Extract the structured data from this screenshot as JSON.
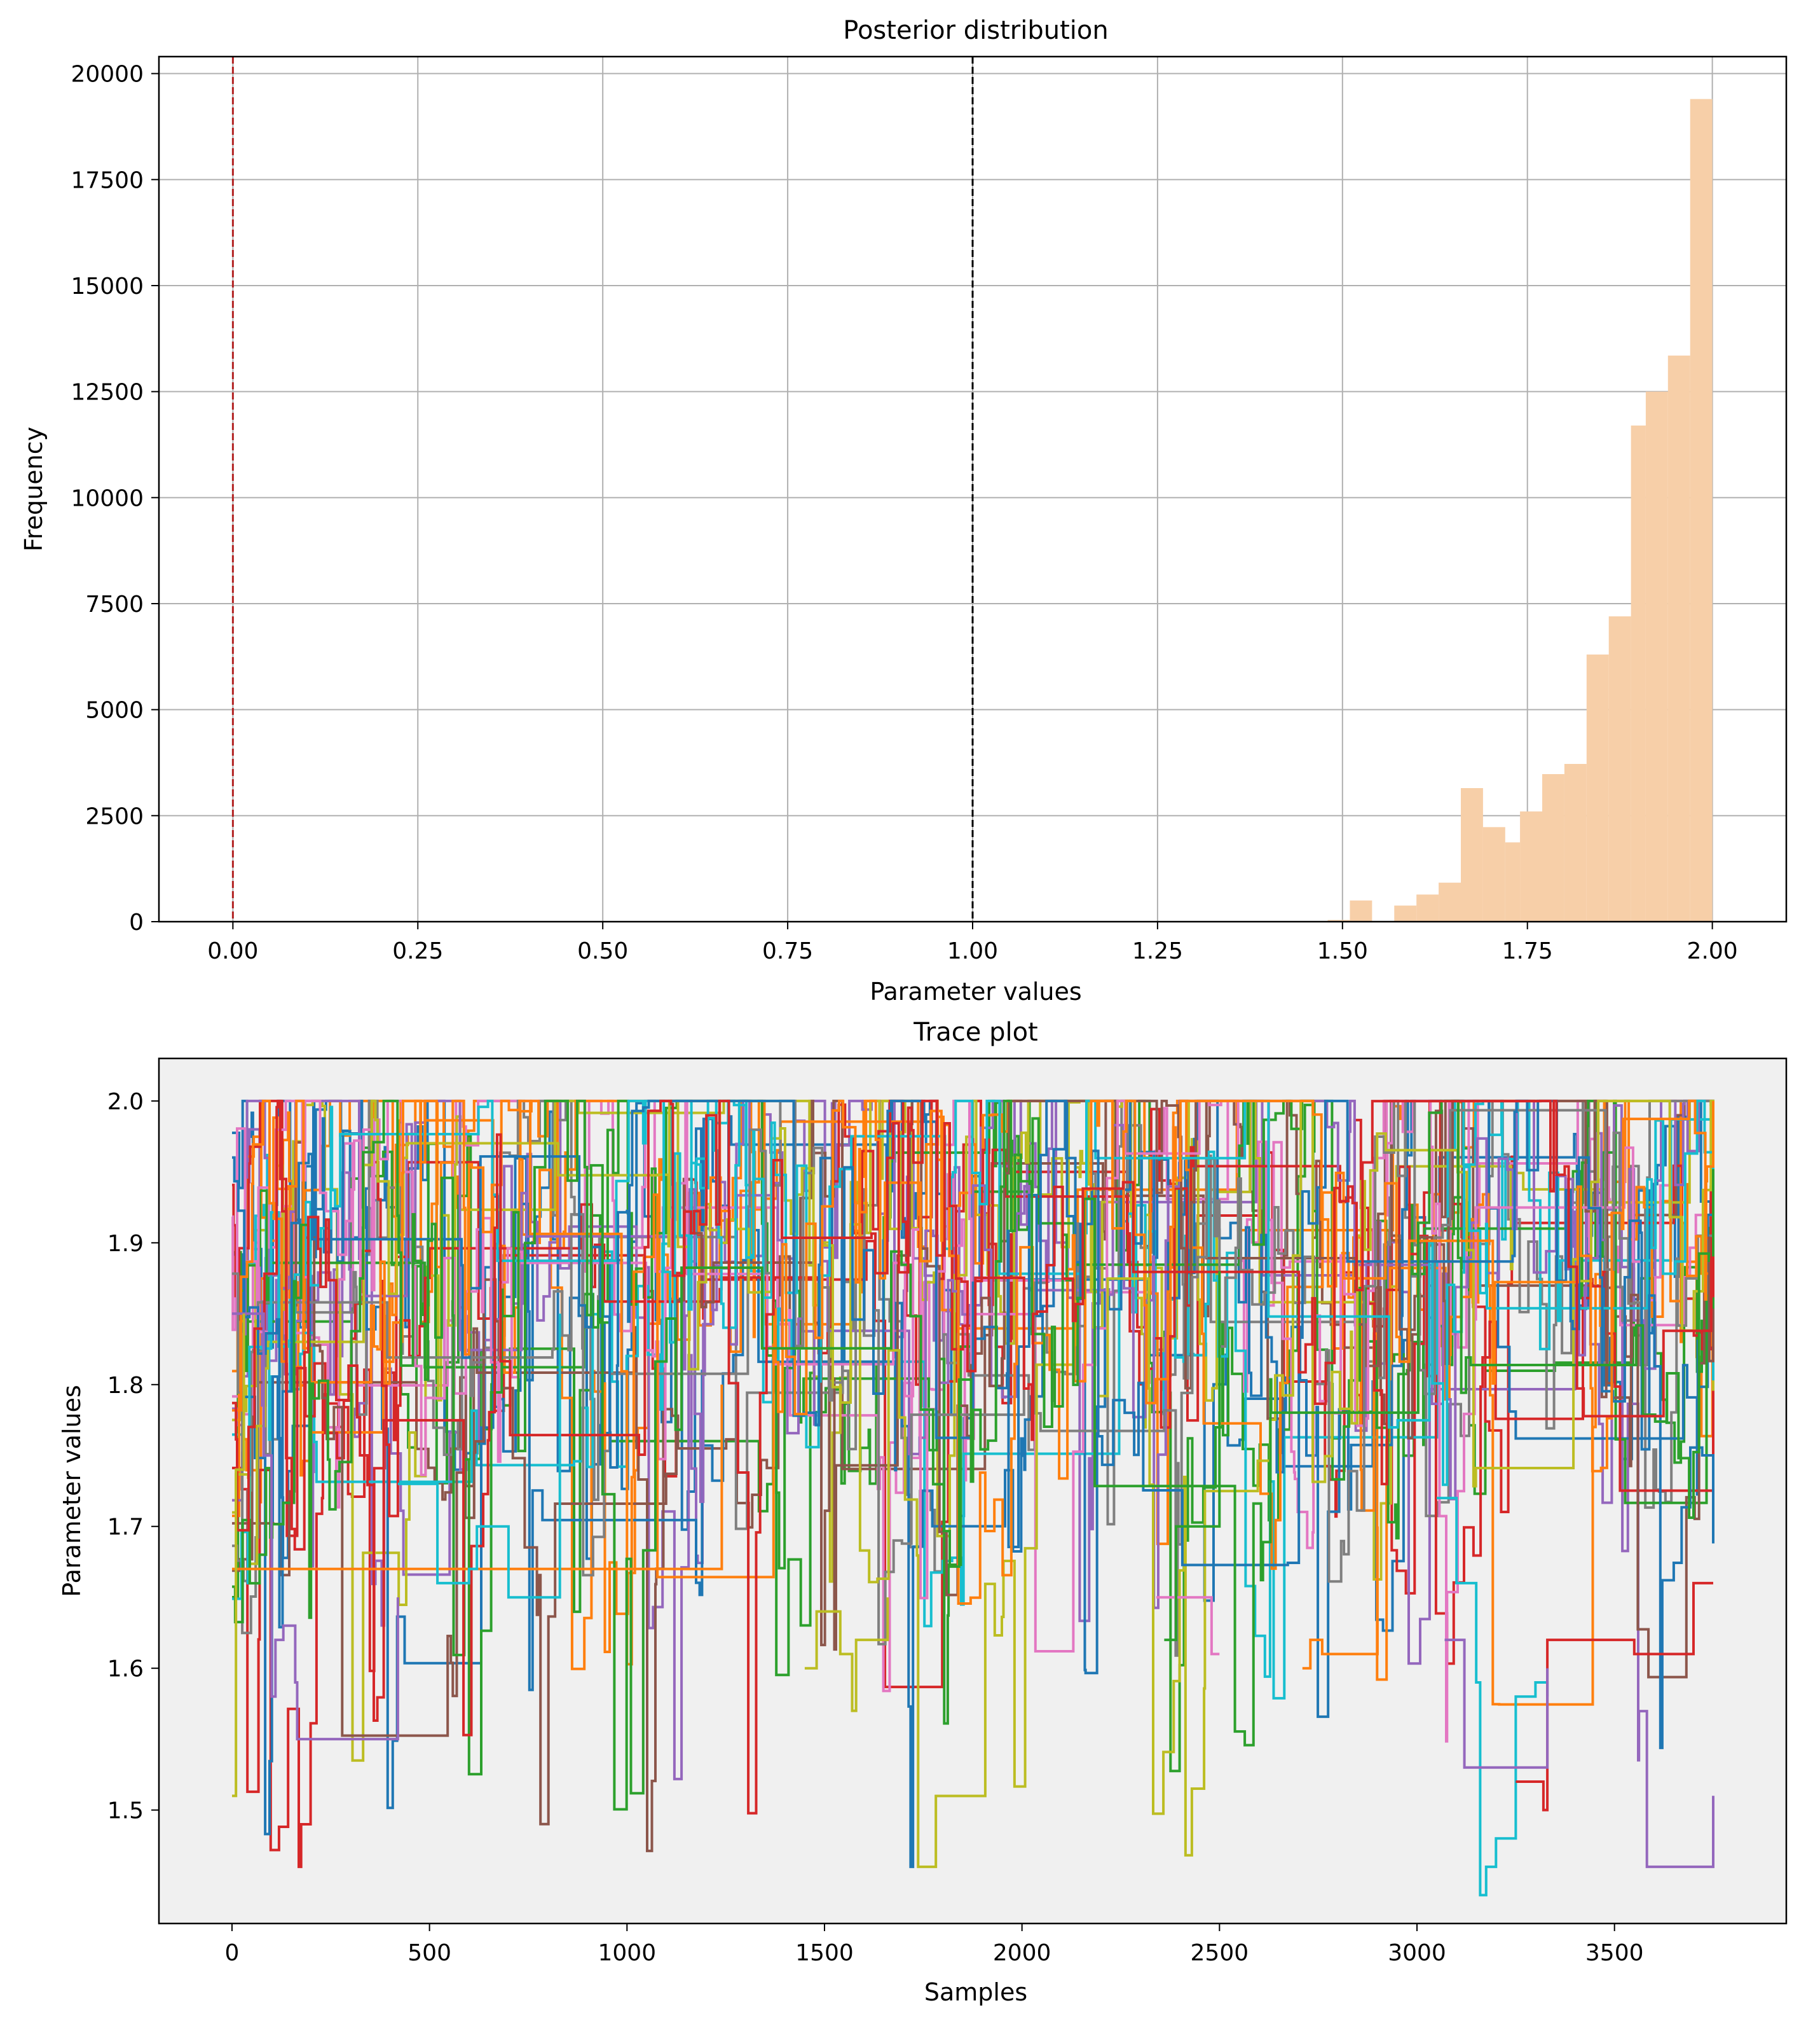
{
  "chart_data": [
    {
      "type": "bar",
      "title": "Posterior distribution",
      "xlabel": "Parameter values",
      "ylabel": "Frequency",
      "xlim": [
        -0.1,
        2.1
      ],
      "ylim": [
        0,
        20400
      ],
      "xticks": [
        "0.00",
        "0.25",
        "0.50",
        "0.75",
        "1.00",
        "1.25",
        "1.50",
        "1.75",
        "2.00"
      ],
      "yticks": [
        "0",
        "2500",
        "5000",
        "7500",
        "10000",
        "12500",
        "15000",
        "17500",
        "20000"
      ],
      "grid": true,
      "bar_color": "#f7cfa8",
      "bins": [
        {
          "x0": 1.48,
          "x1": 1.51,
          "value": 40
        },
        {
          "x0": 1.51,
          "x1": 1.54,
          "value": 500
        },
        {
          "x0": 1.57,
          "x1": 1.6,
          "value": 380
        },
        {
          "x0": 1.6,
          "x1": 1.63,
          "value": 640
        },
        {
          "x0": 1.63,
          "x1": 1.66,
          "value": 920
        },
        {
          "x0": 1.66,
          "x1": 1.69,
          "value": 3150
        },
        {
          "x0": 1.69,
          "x1": 1.72,
          "value": 2230
        },
        {
          "x0": 1.72,
          "x1": 1.74,
          "value": 1870
        },
        {
          "x0": 1.74,
          "x1": 1.77,
          "value": 2600
        },
        {
          "x0": 1.77,
          "x1": 1.8,
          "value": 3480
        },
        {
          "x0": 1.8,
          "x1": 1.83,
          "value": 3720
        },
        {
          "x0": 1.83,
          "x1": 1.86,
          "value": 6300
        },
        {
          "x0": 1.86,
          "x1": 1.89,
          "value": 7200
        },
        {
          "x0": 1.89,
          "x1": 1.91,
          "value": 11700
        },
        {
          "x0": 1.91,
          "x1": 1.94,
          "value": 12500
        },
        {
          "x0": 1.94,
          "x1": 1.97,
          "value": 13350
        },
        {
          "x0": 1.97,
          "x1": 2.0,
          "value": 19400
        }
      ],
      "vlines": [
        {
          "x": 0.0,
          "color": "#b22222",
          "style": "dashed"
        },
        {
          "x": 1.0,
          "color": "#000000",
          "style": "dashed"
        }
      ]
    },
    {
      "type": "line",
      "title": "Trace plot",
      "xlabel": "Samples",
      "ylabel": "Parameter values",
      "xlim": [
        -185,
        3935
      ],
      "ylim": [
        1.42,
        2.03
      ],
      "xticks": [
        "0",
        "500",
        "1000",
        "1500",
        "2000",
        "2500",
        "3000",
        "3500"
      ],
      "yticks": [
        "1.5",
        "1.6",
        "1.7",
        "1.8",
        "1.9",
        "2.0"
      ],
      "background": "#f0f0f0",
      "n_samples": 3750,
      "n_chains": 24,
      "series_colors": [
        "#1f77b4",
        "#ff7f0e",
        "#2ca02c",
        "#d62728",
        "#9467bd",
        "#8c564b",
        "#e377c2",
        "#7f7f7f",
        "#bcbd22",
        "#17becf"
      ],
      "highlighted_segments": [
        {
          "color": "#17becf",
          "points": [
            [
              3050,
              1.72
            ],
            [
              3100,
              1.66
            ],
            [
              3150,
              1.59
            ],
            [
              3160,
              1.44
            ],
            [
              3175,
              1.46
            ],
            [
              3200,
              1.48
            ],
            [
              3250,
              1.48
            ],
            [
              3250,
              1.58
            ],
            [
              3300,
              1.59
            ],
            [
              3330,
              1.58
            ]
          ]
        },
        {
          "color": "#9467bd",
          "points": [
            [
              0,
              1.85
            ],
            [
              80,
              1.75
            ],
            [
              100,
              1.58
            ],
            [
              110,
              1.62
            ],
            [
              130,
              1.63
            ],
            [
              160,
              1.59
            ],
            [
              165,
              1.55
            ],
            [
              420,
              1.55
            ],
            [
              420,
              1.65
            ]
          ]
        },
        {
          "color": "#d62728",
          "points": [
            [
              3250,
              1.52
            ],
            [
              3310,
              1.52
            ],
            [
              3320,
              1.5
            ],
            [
              3330,
              1.51
            ],
            [
              3330,
              1.62
            ],
            [
              3550,
              1.61
            ],
            [
              3700,
              1.61
            ],
            [
              3700,
              1.66
            ],
            [
              3750,
              1.66
            ]
          ]
        },
        {
          "color": "#ff7f0e",
          "points": [
            [
              0,
              1.67
            ],
            [
              420,
              1.67
            ],
            [
              830,
              1.67
            ],
            [
              1240,
              1.67
            ],
            [
              1240,
              1.8
            ]
          ]
        },
        {
          "color": "#17becf",
          "points": [
            [
              420,
              1.73
            ],
            [
              520,
              1.73
            ],
            [
              520,
              1.66
            ],
            [
              560,
              1.66
            ],
            [
              600,
              1.67
            ],
            [
              620,
              1.7
            ],
            [
              700,
              1.7
            ],
            [
              700,
              1.65
            ],
            [
              830,
              1.65
            ],
            [
              830,
              1.85
            ]
          ]
        },
        {
          "color": "#bcbd22",
          "points": [
            [
              0,
              1.51
            ],
            [
              10,
              1.51
            ],
            [
              10,
              1.74
            ],
            [
              30,
              1.85
            ]
          ]
        },
        {
          "color": "#9467bd",
          "points": [
            [
              3070,
              1.62
            ],
            [
              3120,
              1.53
            ],
            [
              3300,
              1.53
            ],
            [
              3330,
              1.6
            ]
          ]
        },
        {
          "color": "#ff7f0e",
          "points": [
            [
              2710,
              1.6
            ],
            [
              2730,
              1.62
            ],
            [
              2760,
              1.61
            ],
            [
              2900,
              1.61
            ],
            [
              2900,
              1.7
            ]
          ]
        },
        {
          "color": "#e377c2",
          "points": [
            [
              2340,
              1.65
            ],
            [
              2480,
              1.61
            ],
            [
              2500,
              1.61
            ]
          ]
        },
        {
          "color": "#2ca02c",
          "points": [
            [
              2360,
              1.62
            ],
            [
              2390,
              1.7
            ],
            [
              2500,
              1.7
            ],
            [
              2500,
              1.88
            ]
          ]
        },
        {
          "color": "#bcbd22",
          "points": [
            [
              1450,
              1.6
            ],
            [
              1480,
              1.64
            ],
            [
              1540,
              1.61
            ],
            [
              1570,
              1.57
            ],
            [
              1580,
              1.62
            ],
            [
              1640,
              1.62
            ],
            [
              1660,
              1.65
            ]
          ]
        }
      ]
    }
  ]
}
